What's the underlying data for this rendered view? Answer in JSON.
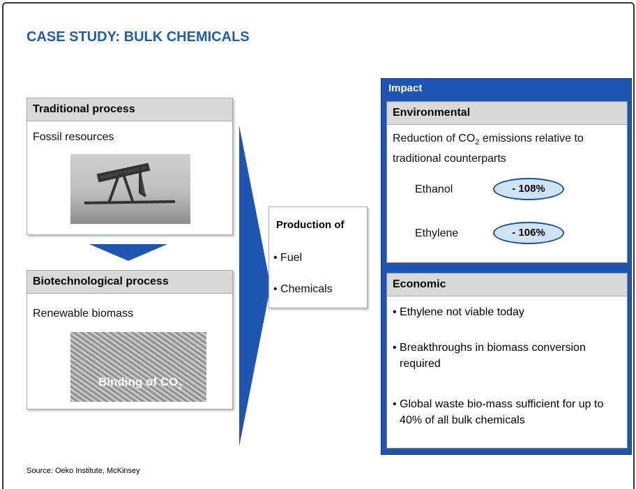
{
  "title": "CASE STUDY: BULK CHEMICALS",
  "traditional": {
    "header": "Traditional process",
    "text": "Fossil resources"
  },
  "biotech": {
    "header": "Biotechnological process",
    "text": "Renewable biomass",
    "image_caption": {
      "before": "Binding of CO",
      "subscript": "2"
    }
  },
  "production": {
    "header": "Production of",
    "items": [
      "Fuel",
      "Chemicals"
    ]
  },
  "impact": {
    "header": "Impact",
    "environmental": {
      "header": "Environmental",
      "text": {
        "before": "Reduction of CO",
        "subscript": "2",
        "after": " emissions relative to traditional counterparts"
      },
      "rows": [
        {
          "label": "Ethanol",
          "value": "- 108%"
        },
        {
          "label": "Ethylene",
          "value": "- 106%"
        }
      ]
    },
    "economic": {
      "header": "Economic",
      "items": [
        "Ethylene not viable today",
        "Breakthroughs in biomass conversion required",
        "Global waste bio-mass sufficient for up to 40% of all bulk chemicals"
      ]
    }
  },
  "source": "Source: Oeko Institute, McKinsey"
}
